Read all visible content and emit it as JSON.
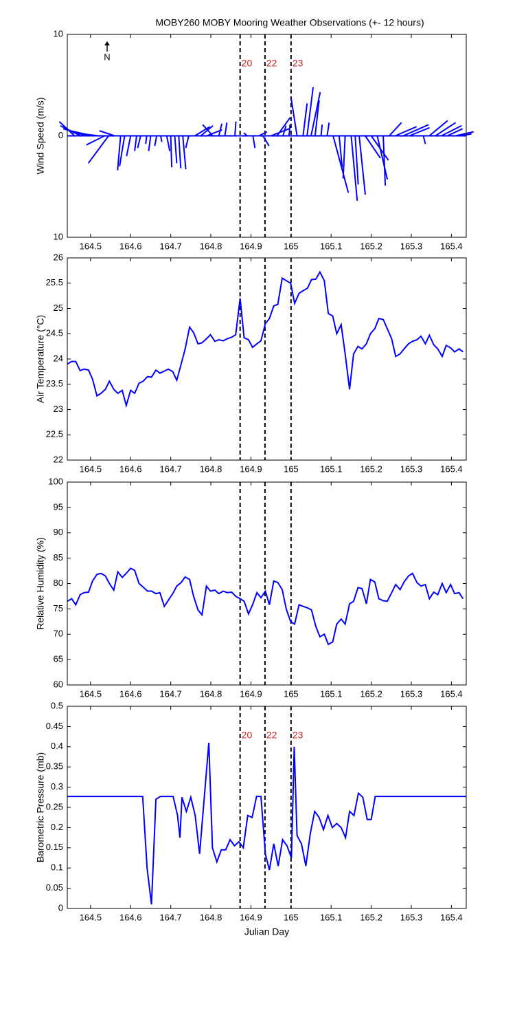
{
  "chart_data": [
    {
      "type": "stick",
      "title": "MOBY260 MOBY Mooring Weather Observations (+- 12 hours)",
      "y_label": "Wind Speed (m/s)",
      "annotation": "N",
      "color": "#0000ff",
      "x": [
        164.46,
        164.475,
        164.49,
        164.505,
        164.52,
        164.535,
        164.545,
        164.56,
        164.575,
        164.585,
        164.6,
        164.615,
        164.625,
        164.64,
        164.65,
        164.665,
        164.675,
        164.69,
        164.7,
        164.71,
        164.72,
        164.73,
        164.745,
        164.76,
        164.775,
        164.79,
        164.805,
        164.82,
        164.835,
        164.86,
        164.89,
        164.905,
        164.92,
        164.93,
        164.95,
        164.965,
        164.98,
        164.995,
        165.015,
        165.03,
        165.04,
        165.05,
        165.06,
        165.075,
        165.09,
        165.105,
        165.12,
        165.135,
        165.15,
        165.16,
        165.17,
        165.185,
        165.2,
        165.215,
        165.23,
        165.245,
        165.26,
        165.28,
        165.295,
        165.33,
        165.345,
        165.36,
        165.375,
        165.39,
        165.41,
        165.425
      ],
      "u": [
        -1.5,
        -2,
        -2.3,
        -2.2,
        -2.5,
        -1.8,
        -2,
        -1.5,
        -0.3,
        -0.5,
        -0.4,
        -0.2,
        -0.3,
        -0.1,
        -0.2,
        -0.2,
        0.1,
        0.3,
        0.1,
        0.2,
        0.2,
        0.3,
        -0.3,
        1.5,
        1.2,
        1.5,
        -1,
        0.3,
        0.2,
        0.1,
        -0.3,
        0.2,
        0.8,
        0.6,
        1.8,
        1.3,
        0.3,
        0.1,
        -0.6,
        0.4,
        0.6,
        0.9,
        0.4,
        0.1,
        0.2,
        1.5,
        0.3,
        -0.2,
        0.6,
        0.3,
        0.6,
        1.5,
        1.7,
        1,
        0.2,
        1.2,
        2.1,
        2.5,
        2,
        0.2,
        1.8,
        2,
        2,
        1.5,
        1.8,
        1
      ],
      "v": [
        1.4,
        1,
        0.7,
        0.5,
        0.3,
        -0.9,
        -2.7,
        0.5,
        -3.4,
        -3,
        -2,
        -1.5,
        -1.2,
        -0.8,
        -1.5,
        -1,
        -0.6,
        -1.5,
        -3.1,
        -2.7,
        -3.2,
        -3.3,
        -1.2,
        0.9,
        1,
        0.6,
        1.1,
        1.2,
        1.3,
        1.4,
        0.3,
        -1.2,
        0.4,
        -1,
        0.7,
        1.8,
        1,
        1.1,
        3.8,
        3.2,
        4.8,
        4.3,
        3.5,
        1.1,
        1.3,
        -5.6,
        -3.1,
        -4.2,
        -6.4,
        -4.8,
        -5.8,
        -2.2,
        -2.4,
        -4.3,
        -4.9,
        1.3,
        0.9,
        1.1,
        0.8,
        -0.8,
        1.5,
        1.3,
        1,
        0.7,
        0.4,
        0.2
      ],
      "xlim": [
        164.442,
        165.437
      ],
      "xticks": [
        164.5,
        164.6,
        164.7,
        164.8,
        164.9,
        165,
        165.1,
        165.2,
        165.3,
        165.4
      ],
      "ylim": [
        -10,
        10
      ],
      "yticks": [
        {
          "value": -10,
          "label": "10"
        },
        0,
        10
      ],
      "vlines": [
        164.873,
        164.935,
        165.0
      ],
      "vline_labels": [
        "20",
        "22",
        "23"
      ],
      "vline_label_color": "#cc2222"
    },
    {
      "type": "line",
      "y_label": "Air Temperature (°C)",
      "color": "#0000ff",
      "x": [
        164.442,
        164.453,
        164.463,
        164.474,
        164.484,
        164.495,
        164.505,
        164.516,
        164.526,
        164.537,
        164.547,
        164.558,
        164.568,
        164.579,
        164.589,
        164.6,
        164.61,
        164.621,
        164.631,
        164.642,
        164.652,
        164.663,
        164.673,
        164.684,
        164.694,
        164.705,
        164.715,
        164.726,
        164.736,
        164.747,
        164.757,
        164.768,
        164.778,
        164.789,
        164.799,
        164.81,
        164.82,
        164.831,
        164.841,
        164.852,
        164.862,
        164.873,
        164.883,
        164.894,
        164.904,
        164.915,
        164.925,
        164.936,
        164.946,
        164.957,
        164.967,
        164.978,
        164.988,
        164.999,
        165.009,
        165.02,
        165.03,
        165.041,
        165.051,
        165.062,
        165.072,
        165.083,
        165.093,
        165.104,
        165.114,
        165.125,
        165.135,
        165.146,
        165.156,
        165.167,
        165.177,
        165.188,
        165.198,
        165.209,
        165.219,
        165.23,
        165.24,
        165.251,
        165.261,
        165.272,
        165.282,
        165.293,
        165.303,
        165.314,
        165.324,
        165.335,
        165.345,
        165.356,
        165.366,
        165.377,
        165.387,
        165.398,
        165.408,
        165.419,
        165.429
      ],
      "values": [
        23.9,
        23.95,
        23.95,
        23.77,
        23.8,
        23.78,
        23.6,
        23.27,
        23.32,
        23.4,
        23.56,
        23.4,
        23.32,
        23.38,
        23.08,
        23.38,
        23.32,
        23.52,
        23.56,
        23.65,
        23.64,
        23.78,
        23.72,
        23.76,
        23.8,
        23.75,
        23.58,
        23.9,
        24.2,
        24.63,
        24.52,
        24.3,
        24.32,
        24.4,
        24.48,
        24.35,
        24.38,
        24.36,
        24.4,
        24.43,
        24.48,
        25.2,
        24.42,
        24.38,
        24.23,
        24.3,
        24.36,
        24.7,
        24.8,
        25.05,
        25.08,
        25.6,
        25.55,
        25.5,
        25.1,
        25.3,
        25.35,
        25.4,
        25.57,
        25.58,
        25.72,
        25.55,
        24.9,
        24.85,
        24.5,
        24.68,
        24.1,
        23.4,
        24.1,
        24.25,
        24.2,
        24.3,
        24.5,
        24.6,
        24.8,
        24.78,
        24.6,
        24.4,
        24.05,
        24.1,
        24.2,
        24.3,
        24.35,
        24.38,
        24.45,
        24.3,
        24.47,
        24.28,
        24.2,
        24.05,
        24.27,
        24.22,
        24.14,
        24.2,
        24.14
      ],
      "xlim": [
        164.442,
        165.437
      ],
      "xticks": [
        164.5,
        164.6,
        164.7,
        164.8,
        164.9,
        165,
        165.1,
        165.2,
        165.3,
        165.4
      ],
      "ylim": [
        22,
        26
      ],
      "yticks": [
        22,
        22.5,
        23,
        23.5,
        24,
        24.5,
        25,
        25.5,
        26
      ],
      "vlines": [
        164.873,
        164.935,
        165.0
      ]
    },
    {
      "type": "line",
      "y_label": "Relative Humidity (%)",
      "color": "#0000ff",
      "x": [
        164.442,
        164.453,
        164.463,
        164.474,
        164.484,
        164.495,
        164.505,
        164.516,
        164.526,
        164.537,
        164.547,
        164.558,
        164.568,
        164.579,
        164.589,
        164.6,
        164.61,
        164.621,
        164.631,
        164.642,
        164.652,
        164.663,
        164.673,
        164.684,
        164.694,
        164.705,
        164.715,
        164.726,
        164.736,
        164.747,
        164.757,
        164.768,
        164.778,
        164.789,
        164.799,
        164.81,
        164.82,
        164.831,
        164.841,
        164.852,
        164.862,
        164.873,
        164.883,
        164.894,
        164.904,
        164.915,
        164.925,
        164.936,
        164.946,
        164.957,
        164.967,
        164.978,
        164.988,
        164.999,
        165.009,
        165.02,
        165.03,
        165.041,
        165.051,
        165.062,
        165.072,
        165.083,
        165.093,
        165.104,
        165.114,
        165.125,
        165.135,
        165.146,
        165.156,
        165.167,
        165.177,
        165.188,
        165.198,
        165.209,
        165.219,
        165.23,
        165.24,
        165.251,
        165.261,
        165.272,
        165.282,
        165.293,
        165.303,
        165.314,
        165.324,
        165.335,
        165.345,
        165.356,
        165.366,
        165.377,
        165.387,
        165.398,
        165.408,
        165.419,
        165.429
      ],
      "values": [
        76.5,
        77,
        75.8,
        77.8,
        78.2,
        78.3,
        80.5,
        81.8,
        82,
        81.5,
        80,
        78.7,
        82.3,
        81.2,
        82,
        83,
        82.6,
        80,
        79.3,
        78.5,
        78.5,
        78,
        78.2,
        75.5,
        76.7,
        78,
        79.5,
        80.2,
        81.3,
        80.8,
        77.5,
        74.8,
        73.8,
        79.5,
        78.5,
        78.7,
        78,
        78.5,
        78.2,
        78.3,
        77.5,
        77,
        76.5,
        74,
        75.8,
        78.2,
        77.2,
        78.5,
        75.8,
        80.5,
        80.2,
        78.8,
        75,
        72.5,
        72,
        75.8,
        75.5,
        75.2,
        74.8,
        71.5,
        69.5,
        70,
        68,
        68.5,
        72,
        73,
        72,
        76,
        76.5,
        79.2,
        79,
        76,
        80.8,
        80.3,
        77,
        76.6,
        76.5,
        78.2,
        79.8,
        78.8,
        80.3,
        81.5,
        82,
        80.2,
        79.5,
        79.8,
        77,
        78.3,
        77.8,
        80,
        78.2,
        79.8,
        78,
        78.2,
        77
      ],
      "xlim": [
        164.442,
        165.437
      ],
      "xticks": [
        164.5,
        164.6,
        164.7,
        164.8,
        164.9,
        165,
        165.1,
        165.2,
        165.3,
        165.4
      ],
      "ylim": [
        60,
        100
      ],
      "yticks": [
        60,
        65,
        70,
        75,
        80,
        85,
        90,
        95,
        100
      ],
      "vlines": [
        164.873,
        164.935,
        165.0
      ]
    },
    {
      "type": "line",
      "y_label": "Barometric Pressure (mb)",
      "x_label": "Julian Day",
      "color": "#0000ff",
      "x": [
        164.442,
        164.63,
        164.641,
        164.652,
        164.663,
        164.674,
        164.706,
        164.717,
        164.723,
        164.728,
        164.739,
        164.75,
        164.761,
        164.772,
        164.795,
        164.804,
        164.815,
        164.826,
        164.837,
        164.848,
        164.859,
        164.87,
        164.881,
        164.892,
        164.903,
        164.914,
        164.925,
        164.936,
        164.946,
        164.957,
        164.968,
        164.979,
        164.99,
        165.001,
        165.008,
        165.015,
        165.026,
        165.037,
        165.048,
        165.059,
        165.07,
        165.081,
        165.092,
        165.103,
        165.114,
        165.125,
        165.136,
        165.146,
        165.157,
        165.168,
        165.179,
        165.19,
        165.2,
        165.21,
        165.437
      ],
      "values": [
        0.277,
        0.277,
        0.1,
        0.01,
        0.27,
        0.277,
        0.277,
        0.23,
        0.175,
        0.275,
        0.24,
        0.275,
        0.23,
        0.135,
        0.41,
        0.15,
        0.115,
        0.145,
        0.145,
        0.17,
        0.155,
        0.165,
        0.15,
        0.23,
        0.225,
        0.277,
        0.277,
        0.135,
        0.095,
        0.16,
        0.105,
        0.17,
        0.155,
        0.125,
        0.4,
        0.18,
        0.16,
        0.105,
        0.185,
        0.24,
        0.225,
        0.195,
        0.23,
        0.2,
        0.21,
        0.2,
        0.175,
        0.24,
        0.23,
        0.285,
        0.275,
        0.22,
        0.22,
        0.277,
        0.277
      ],
      "xlim": [
        164.442,
        165.437
      ],
      "xticks": [
        164.5,
        164.6,
        164.7,
        164.8,
        164.9,
        165,
        165.1,
        165.2,
        165.3,
        165.4
      ],
      "ylim": [
        0,
        0.5
      ],
      "yticks": [
        0,
        0.05,
        0.1,
        0.15,
        0.2,
        0.25,
        0.3,
        0.35,
        0.4,
        0.45,
        0.5
      ],
      "vlines": [
        164.873,
        164.935,
        165.0
      ],
      "vline_labels": [
        "20",
        "22",
        "23"
      ],
      "vline_label_color": "#cc2222"
    }
  ]
}
